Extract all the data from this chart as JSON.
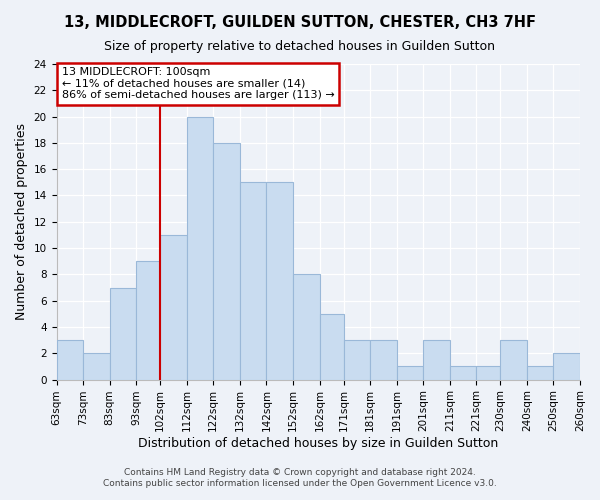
{
  "title": "13, MIDDLECROFT, GUILDEN SUTTON, CHESTER, CH3 7HF",
  "subtitle": "Size of property relative to detached houses in Guilden Sutton",
  "xlabel": "Distribution of detached houses by size in Guilden Sutton",
  "ylabel": "Number of detached properties",
  "bin_labels": [
    "63sqm",
    "73sqm",
    "83sqm",
    "93sqm",
    "102sqm",
    "112sqm",
    "122sqm",
    "132sqm",
    "142sqm",
    "152sqm",
    "162sqm",
    "171sqm",
    "181sqm",
    "191sqm",
    "201sqm",
    "211sqm",
    "221sqm",
    "230sqm",
    "240sqm",
    "250sqm",
    "260sqm"
  ],
  "bin_edges": [
    63,
    73,
    83,
    93,
    102,
    112,
    122,
    132,
    142,
    152,
    162,
    171,
    181,
    191,
    201,
    211,
    221,
    230,
    240,
    250,
    260
  ],
  "bar_values": [
    3,
    2,
    7,
    9,
    11,
    20,
    18,
    15,
    15,
    8,
    5,
    3,
    3,
    1,
    3,
    1,
    1,
    3,
    1,
    2
  ],
  "bar_color": "#c9dcf0",
  "bar_edge_color": "#9ab8d8",
  "reference_line_x": 102,
  "reference_line_color": "#cc0000",
  "annotation_text": "13 MIDDLECROFT: 100sqm\n← 11% of detached houses are smaller (14)\n86% of semi-detached houses are larger (113) →",
  "annotation_box_edge_color": "#cc0000",
  "annotation_box_face_color": "white",
  "ylim": [
    0,
    24
  ],
  "yticks": [
    0,
    2,
    4,
    6,
    8,
    10,
    12,
    14,
    16,
    18,
    20,
    22,
    24
  ],
  "footer1": "Contains HM Land Registry data © Crown copyright and database right 2024.",
  "footer2": "Contains public sector information licensed under the Open Government Licence v3.0.",
  "background_color": "#eef2f8",
  "grid_color": "white",
  "title_fontsize": 10.5,
  "subtitle_fontsize": 9,
  "axis_label_fontsize": 9,
  "tick_fontsize": 7.5,
  "annotation_fontsize": 8,
  "footer_fontsize": 6.5
}
